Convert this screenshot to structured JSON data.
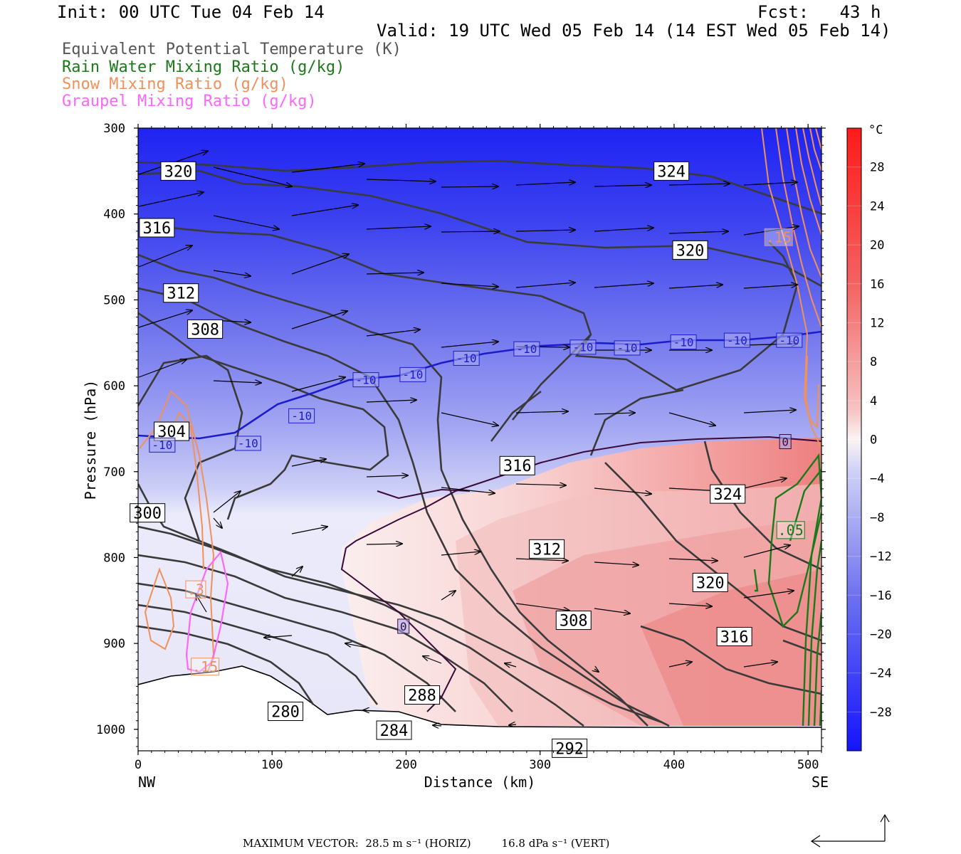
{
  "header": {
    "init": "Init: 00 UTC Tue 04 Feb 14",
    "fcst": "Fcst:   43 h",
    "valid": "Valid: 19 UTC Wed 05 Feb 14 (14 EST Wed 05 Feb 14)"
  },
  "legend": [
    {
      "label": "Equivalent Potential Temperature (K)",
      "color": "#555555"
    },
    {
      "label": "Rain Water Mixing Ratio (g/kg)",
      "color": "#1a7a1a"
    },
    {
      "label": "Snow Mixing Ratio (g/kg)",
      "color": "#f0905a"
    },
    {
      "label": "Graupel Mixing Ratio (g/kg)",
      "color": "#ff66ff"
    }
  ],
  "chart_data": {
    "type": "cross-section",
    "xlabel": "Distance (km)",
    "ylabel": "Pressure (hPa)",
    "xlim": [
      0,
      510
    ],
    "ylim": [
      1025,
      300
    ],
    "x_ticks": [
      0,
      100,
      200,
      300,
      400,
      500
    ],
    "y_ticks": [
      300,
      400,
      500,
      600,
      700,
      800,
      900,
      1000
    ],
    "x_tick_labels": [
      "0",
      "100",
      "200",
      "300",
      "400",
      "500"
    ],
    "y_tick_labels": [
      "300",
      "400",
      "500",
      "600",
      "700",
      "800",
      "900",
      "1000"
    ],
    "endpoints": {
      "left": "NW",
      "right": "SE"
    },
    "colorbar": {
      "unit": "°C",
      "ticks": [
        28,
        24,
        20,
        16,
        12,
        8,
        4,
        0,
        -4,
        -8,
        -12,
        -16,
        -20,
        -24,
        -28
      ],
      "tick_labels": [
        "28",
        "24",
        "20",
        "16",
        "12",
        "8",
        "4",
        "0",
        "−4",
        "−8",
        "−12",
        "−16",
        "−20",
        "−24",
        "−28"
      ],
      "range": [
        -32,
        32
      ]
    },
    "theta_e_contour_labels": [
      {
        "label": "320",
        "x": 30,
        "p": 350
      },
      {
        "label": "324",
        "x": 398,
        "p": 350
      },
      {
        "label": "316",
        "x": 14,
        "p": 416
      },
      {
        "label": "320",
        "x": 412,
        "p": 442
      },
      {
        "label": "312",
        "x": 32,
        "p": 492
      },
      {
        "label": "308",
        "x": 50,
        "p": 534
      },
      {
        "label": "304",
        "x": 25,
        "p": 653
      },
      {
        "label": "316",
        "x": 283,
        "p": 693
      },
      {
        "label": "324",
        "x": 440,
        "p": 726
      },
      {
        "label": "300",
        "x": 7,
        "p": 748
      },
      {
        "label": "312",
        "x": 305,
        "p": 790
      },
      {
        "label": "320",
        "x": 427,
        "p": 829
      },
      {
        "label": "308",
        "x": 325,
        "p": 873
      },
      {
        "label": "316",
        "x": 445,
        "p": 892
      },
      {
        "label": "288",
        "x": 212,
        "p": 960
      },
      {
        "label": "280",
        "x": 110,
        "p": 979
      },
      {
        "label": "284",
        "x": 191,
        "p": 1001
      },
      {
        "label": "292",
        "x": 322,
        "p": 1022
      }
    ],
    "isotherm_labels": [
      {
        "label": "-10",
        "x": 18,
        "p": 669
      },
      {
        "label": "-10",
        "x": 82,
        "p": 667
      },
      {
        "label": "-10",
        "x": 122,
        "p": 635
      },
      {
        "label": "-10",
        "x": 170,
        "p": 593
      },
      {
        "label": "-10",
        "x": 205,
        "p": 587
      },
      {
        "label": "-10",
        "x": 245,
        "p": 568
      },
      {
        "label": "-10",
        "x": 290,
        "p": 557
      },
      {
        "label": "-10",
        "x": 332,
        "p": 555
      },
      {
        "label": "-10",
        "x": 365,
        "p": 556
      },
      {
        "label": "-10",
        "x": 407,
        "p": 549
      },
      {
        "label": "-10",
        "x": 447,
        "p": 547
      },
      {
        "label": "-10",
        "x": 486,
        "p": 547
      },
      {
        "label": "0",
        "x": 483,
        "p": 665
      },
      {
        "label": "0",
        "x": 198,
        "p": 880
      }
    ],
    "snow_labels": [
      {
        "label": ".15",
        "x": 478,
        "p": 427
      },
      {
        "label": ".3",
        "x": 43,
        "p": 837
      },
      {
        "label": ".15",
        "x": 50,
        "p": 927
      }
    ],
    "rain_labels": [
      {
        "label": ".05",
        "x": 487,
        "p": 768
      }
    ],
    "max_vector": "MAXIMUM VECTOR:  28.5 m s⁻¹ (HORIZ)         16.8 dPa s⁻¹ (VERT)"
  }
}
